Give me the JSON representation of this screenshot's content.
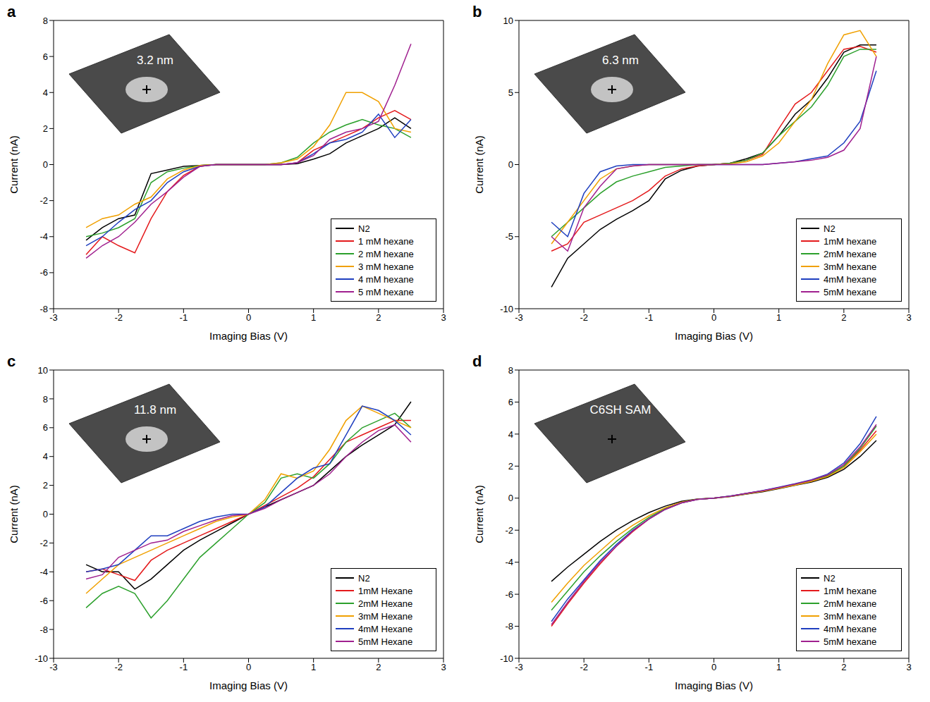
{
  "chart_data": [
    {
      "type": "line",
      "title": "a",
      "annotations": [
        "3.2 nm"
      ],
      "x_label": "Imaging Bias (V)",
      "y_label": "Current (nA)",
      "x": [
        -2.5,
        -2.25,
        -2,
        -1.75,
        -1.5,
        -1.25,
        -1,
        -0.75,
        -0.5,
        -0.25,
        0,
        0.25,
        0.5,
        0.75,
        1,
        1.25,
        1.5,
        1.75,
        2,
        2.25,
        2.5
      ],
      "xlim": [
        -3,
        3
      ],
      "xticks": [
        -3,
        -2,
        -1,
        0,
        1,
        2,
        3
      ],
      "ylim": [
        -8,
        8
      ],
      "yticks": [
        -8,
        -6,
        -4,
        -2,
        0,
        2,
        4,
        6,
        8
      ],
      "grid": false,
      "legend": "lower right",
      "series": [
        {
          "name": "N2",
          "color": "#000000",
          "values": [
            -4.2,
            -3.5,
            -3,
            -2.8,
            -0.5,
            -0.3,
            -0.1,
            -0.05,
            0,
            0,
            0,
            0,
            0,
            0.05,
            0.3,
            0.6,
            1.2,
            1.6,
            2.0,
            2.6,
            2.0
          ]
        },
        {
          "name": "1 mM hexane",
          "color": "#e41a1c",
          "values": [
            -5.0,
            -4.0,
            -4.5,
            -4.9,
            -3.0,
            -1.5,
            -0.6,
            -0.1,
            0,
            0,
            0,
            0,
            0,
            0.1,
            0.8,
            1.2,
            1.6,
            2.0,
            2.6,
            3.0,
            2.5
          ]
        },
        {
          "name": "2 mM hexane",
          "color": "#2ca02c",
          "values": [
            -4.0,
            -3.8,
            -3.5,
            -3.0,
            -1.0,
            -0.4,
            -0.2,
            -0.05,
            0,
            0,
            0,
            0,
            0.1,
            0.4,
            1.2,
            1.8,
            2.2,
            2.5,
            2.2,
            2.0,
            1.5
          ]
        },
        {
          "name": "3 mM hexane",
          "color": "#f0a000",
          "values": [
            -3.5,
            -3.0,
            -2.8,
            -2.2,
            -1.8,
            -0.8,
            -0.3,
            -0.05,
            0,
            0,
            0,
            0,
            0.1,
            0.3,
            1.0,
            2.2,
            4.0,
            4.0,
            3.5,
            2.0,
            1.8
          ]
        },
        {
          "name": "4 mM hexane",
          "color": "#1f3fbf",
          "values": [
            -4.5,
            -4.0,
            -3.2,
            -2.5,
            -2.0,
            -1.0,
            -0.4,
            -0.1,
            0,
            0,
            0,
            0,
            0,
            0.1,
            0.6,
            1.2,
            1.4,
            1.8,
            2.8,
            1.5,
            2.5
          ]
        },
        {
          "name": "5 mM hexane",
          "color": "#a0208f",
          "values": [
            -5.2,
            -4.5,
            -4.0,
            -3.2,
            -2.2,
            -1.5,
            -0.7,
            -0.1,
            0,
            0,
            0,
            0,
            0,
            0.1,
            0.5,
            1.4,
            1.8,
            2.0,
            2.4,
            4.4,
            6.7
          ]
        }
      ]
    },
    {
      "type": "line",
      "title": "b",
      "annotations": [
        "6.3 nm"
      ],
      "x_label": "Imaging Bias (V)",
      "y_label": "Current (nA)",
      "x": [
        -2.5,
        -2.25,
        -2,
        -1.75,
        -1.5,
        -1.25,
        -1,
        -0.75,
        -0.5,
        -0.25,
        0,
        0.25,
        0.5,
        0.75,
        1,
        1.25,
        1.5,
        1.75,
        2,
        2.25,
        2.5
      ],
      "xlim": [
        -3,
        3
      ],
      "xticks": [
        -3,
        -2,
        -1,
        0,
        1,
        2,
        3
      ],
      "ylim": [
        -10,
        10
      ],
      "yticks": [
        -10,
        -5,
        0,
        5,
        10
      ],
      "grid": false,
      "legend": "lower right",
      "series": [
        {
          "name": "N2",
          "color": "#000000",
          "values": [
            -8.5,
            -6.5,
            -5.5,
            -4.5,
            -3.8,
            -3.2,
            -2.5,
            -1.0,
            -0.4,
            -0.1,
            0,
            0.1,
            0.4,
            0.8,
            2.0,
            3.5,
            4.5,
            6.0,
            7.8,
            8.3,
            8.3
          ]
        },
        {
          "name": "1mM hexane",
          "color": "#e41a1c",
          "values": [
            -6.0,
            -5.5,
            -4.0,
            -3.5,
            -3.0,
            -2.5,
            -1.8,
            -0.8,
            -0.3,
            -0.1,
            0,
            0.1,
            0.3,
            0.7,
            2.5,
            4.2,
            5.0,
            6.5,
            8.0,
            8.2,
            7.8
          ]
        },
        {
          "name": "2mM hexane",
          "color": "#2ca02c",
          "values": [
            -5.0,
            -4.0,
            -3.0,
            -2.0,
            -1.2,
            -0.8,
            -0.5,
            -0.2,
            -0.1,
            0,
            0,
            0.1,
            0.3,
            0.8,
            2.0,
            3.0,
            4.0,
            5.5,
            7.5,
            8.0,
            8.0
          ]
        },
        {
          "name": "3mM hexane",
          "color": "#f0a000",
          "values": [
            -5.5,
            -4.0,
            -2.5,
            -1.0,
            -0.3,
            -0.1,
            0,
            0,
            0,
            0,
            0,
            0.05,
            0.2,
            0.6,
            1.5,
            3.0,
            4.5,
            7.0,
            9.0,
            9.3,
            7.5
          ]
        },
        {
          "name": "4mM hexane",
          "color": "#1f3fbf",
          "values": [
            -4.0,
            -5.0,
            -2.0,
            -0.5,
            -0.1,
            0,
            0,
            0,
            0,
            0,
            0,
            0,
            0,
            0,
            0.1,
            0.2,
            0.4,
            0.6,
            1.5,
            3.0,
            6.5
          ]
        },
        {
          "name": "5mM hexane",
          "color": "#a0208f",
          "values": [
            -5.0,
            -6.0,
            -3.0,
            -1.5,
            -0.3,
            -0.1,
            0,
            0,
            0,
            0,
            0,
            0,
            0,
            0,
            0.1,
            0.2,
            0.3,
            0.5,
            1.0,
            2.5,
            7.5
          ]
        }
      ]
    },
    {
      "type": "line",
      "title": "c",
      "annotations": [
        "11.8 nm"
      ],
      "x_label": "Imaging Bias (V)",
      "y_label": "Current (nA)",
      "x": [
        -2.5,
        -2.25,
        -2,
        -1.75,
        -1.5,
        -1.25,
        -1,
        -0.75,
        -0.5,
        -0.25,
        0,
        0.25,
        0.5,
        0.75,
        1,
        1.25,
        1.5,
        1.75,
        2,
        2.25,
        2.5
      ],
      "xlim": [
        -3,
        3
      ],
      "xticks": [
        -3,
        -2,
        -1,
        0,
        1,
        2,
        3
      ],
      "ylim": [
        -10,
        10
      ],
      "yticks": [
        -10,
        -8,
        -6,
        -4,
        -2,
        0,
        2,
        4,
        6,
        8,
        10
      ],
      "grid": false,
      "legend": "lower right",
      "series": [
        {
          "name": "N2",
          "color": "#000000",
          "values": [
            -3.5,
            -4.0,
            -4.0,
            -5.2,
            -4.5,
            -3.5,
            -2.5,
            -1.8,
            -1.2,
            -0.6,
            0,
            0.5,
            1.0,
            1.5,
            2.0,
            3.0,
            4.0,
            4.8,
            5.5,
            6.2,
            7.8
          ]
        },
        {
          "name": "1mM Hexane",
          "color": "#e41a1c",
          "values": [
            -4.0,
            -3.8,
            -4.2,
            -4.6,
            -3.2,
            -2.5,
            -2.0,
            -1.5,
            -1.0,
            -0.5,
            0,
            0.6,
            1.2,
            1.8,
            2.6,
            3.8,
            5.0,
            5.5,
            6.0,
            6.5,
            6.5
          ]
        },
        {
          "name": "2mM Hexane",
          "color": "#2ca02c",
          "values": [
            -6.5,
            -5.5,
            -5.0,
            -5.5,
            -7.2,
            -6.0,
            -4.5,
            -3.0,
            -2.0,
            -1.0,
            0,
            0.8,
            2.5,
            2.8,
            2.5,
            3.5,
            5.0,
            6.0,
            6.5,
            7.0,
            6.0
          ]
        },
        {
          "name": "3mM Hexane",
          "color": "#f0a000",
          "values": [
            -5.5,
            -4.5,
            -3.5,
            -3.0,
            -2.5,
            -2.0,
            -1.5,
            -1.0,
            -0.5,
            -0.2,
            0,
            1.0,
            2.8,
            2.5,
            3.0,
            4.5,
            6.5,
            7.5,
            7.0,
            6.5,
            6.0
          ]
        },
        {
          "name": "4mM Hexane",
          "color": "#1f3fbf",
          "values": [
            -4.0,
            -3.8,
            -3.5,
            -2.5,
            -1.5,
            -1.5,
            -1.0,
            -0.5,
            -0.2,
            0,
            0,
            0.5,
            1.5,
            2.5,
            3.2,
            3.5,
            5.5,
            7.5,
            7.2,
            6.5,
            5.5
          ]
        },
        {
          "name": "5mM Hexane",
          "color": "#a0208f",
          "values": [
            -4.5,
            -4.2,
            -3.0,
            -2.5,
            -2.0,
            -1.8,
            -1.2,
            -0.8,
            -0.4,
            -0.1,
            0,
            0.4,
            1.0,
            1.5,
            2.0,
            2.8,
            4.0,
            5.0,
            5.8,
            6.2,
            5.0
          ]
        }
      ]
    },
    {
      "type": "line",
      "title": "d",
      "annotations": [
        "C6SH SAM"
      ],
      "x_label": "Imaging Bias (V)",
      "y_label": "Current (nA)",
      "x": [
        -2.5,
        -2.25,
        -2,
        -1.75,
        -1.5,
        -1.25,
        -1,
        -0.75,
        -0.5,
        -0.25,
        0,
        0.25,
        0.5,
        0.75,
        1,
        1.25,
        1.5,
        1.75,
        2,
        2.25,
        2.5
      ],
      "xlim": [
        -3,
        3
      ],
      "xticks": [
        -3,
        -2,
        -1,
        0,
        1,
        2,
        3
      ],
      "ylim": [
        -10,
        8
      ],
      "yticks": [
        -10,
        -8,
        -6,
        -4,
        -2,
        0,
        2,
        4,
        6,
        8
      ],
      "grid": false,
      "legend": "lower right",
      "series": [
        {
          "name": "N2",
          "color": "#000000",
          "values": [
            -5.2,
            -4.3,
            -3.5,
            -2.7,
            -2.0,
            -1.4,
            -0.9,
            -0.5,
            -0.2,
            -0.05,
            0,
            0.1,
            0.25,
            0.4,
            0.6,
            0.8,
            1.0,
            1.3,
            1.8,
            2.6,
            3.6
          ]
        },
        {
          "name": "1mM hexane",
          "color": "#e41a1c",
          "values": [
            -8.0,
            -6.6,
            -5.3,
            -4.1,
            -3.0,
            -2.1,
            -1.3,
            -0.7,
            -0.3,
            -0.08,
            0,
            0.12,
            0.3,
            0.45,
            0.65,
            0.85,
            1.1,
            1.4,
            2.0,
            3.0,
            4.2
          ]
        },
        {
          "name": "2mM hexane",
          "color": "#2ca02c",
          "values": [
            -7.0,
            -5.8,
            -4.6,
            -3.6,
            -2.7,
            -1.9,
            -1.2,
            -0.65,
            -0.28,
            -0.07,
            0,
            0.12,
            0.28,
            0.45,
            0.65,
            0.85,
            1.1,
            1.4,
            2.0,
            3.1,
            4.5
          ]
        },
        {
          "name": "3mM hexane",
          "color": "#f0a000",
          "values": [
            -6.5,
            -5.3,
            -4.2,
            -3.3,
            -2.4,
            -1.7,
            -1.1,
            -0.6,
            -0.25,
            -0.06,
            0,
            0.11,
            0.27,
            0.43,
            0.62,
            0.82,
            1.05,
            1.35,
            1.9,
            2.9,
            4.0
          ]
        },
        {
          "name": "4mM hexane",
          "color": "#1f3fbf",
          "values": [
            -7.7,
            -6.3,
            -5.1,
            -3.9,
            -2.9,
            -2.0,
            -1.3,
            -0.7,
            -0.3,
            -0.08,
            0,
            0.13,
            0.3,
            0.48,
            0.68,
            0.9,
            1.15,
            1.5,
            2.2,
            3.4,
            5.1
          ]
        },
        {
          "name": "5mM hexane",
          "color": "#a0208f",
          "values": [
            -7.9,
            -6.5,
            -5.2,
            -4.0,
            -3.0,
            -2.05,
            -1.3,
            -0.7,
            -0.3,
            -0.08,
            0,
            0.12,
            0.3,
            0.46,
            0.66,
            0.88,
            1.12,
            1.45,
            2.1,
            3.2,
            4.6
          ]
        }
      ]
    }
  ]
}
